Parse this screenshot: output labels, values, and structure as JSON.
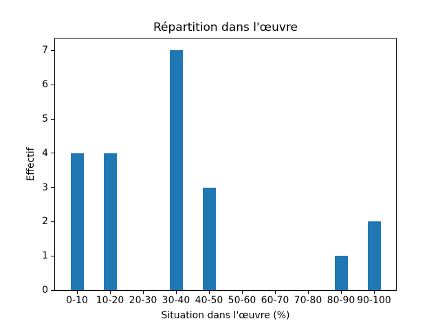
{
  "chart_data": {
    "type": "bar",
    "title": "Répartition dans l'œuvre",
    "xlabel": "Situation dans l'œuvre (%)",
    "ylabel": "Effectif",
    "categories": [
      "0-10",
      "10-20",
      "20-30",
      "30-40",
      "40-50",
      "50-60",
      "60-70",
      "70-80",
      "80-90",
      "90-100"
    ],
    "values": [
      4,
      4,
      0,
      7,
      3,
      0,
      0,
      0,
      1,
      2
    ],
    "yticks": [
      0,
      1,
      2,
      3,
      4,
      5,
      6,
      7
    ],
    "ylim": [
      0,
      7.35
    ],
    "grid": false,
    "bar_color": "#1f77b4",
    "axis_color": "#000000",
    "background_color": "#ffffff"
  }
}
